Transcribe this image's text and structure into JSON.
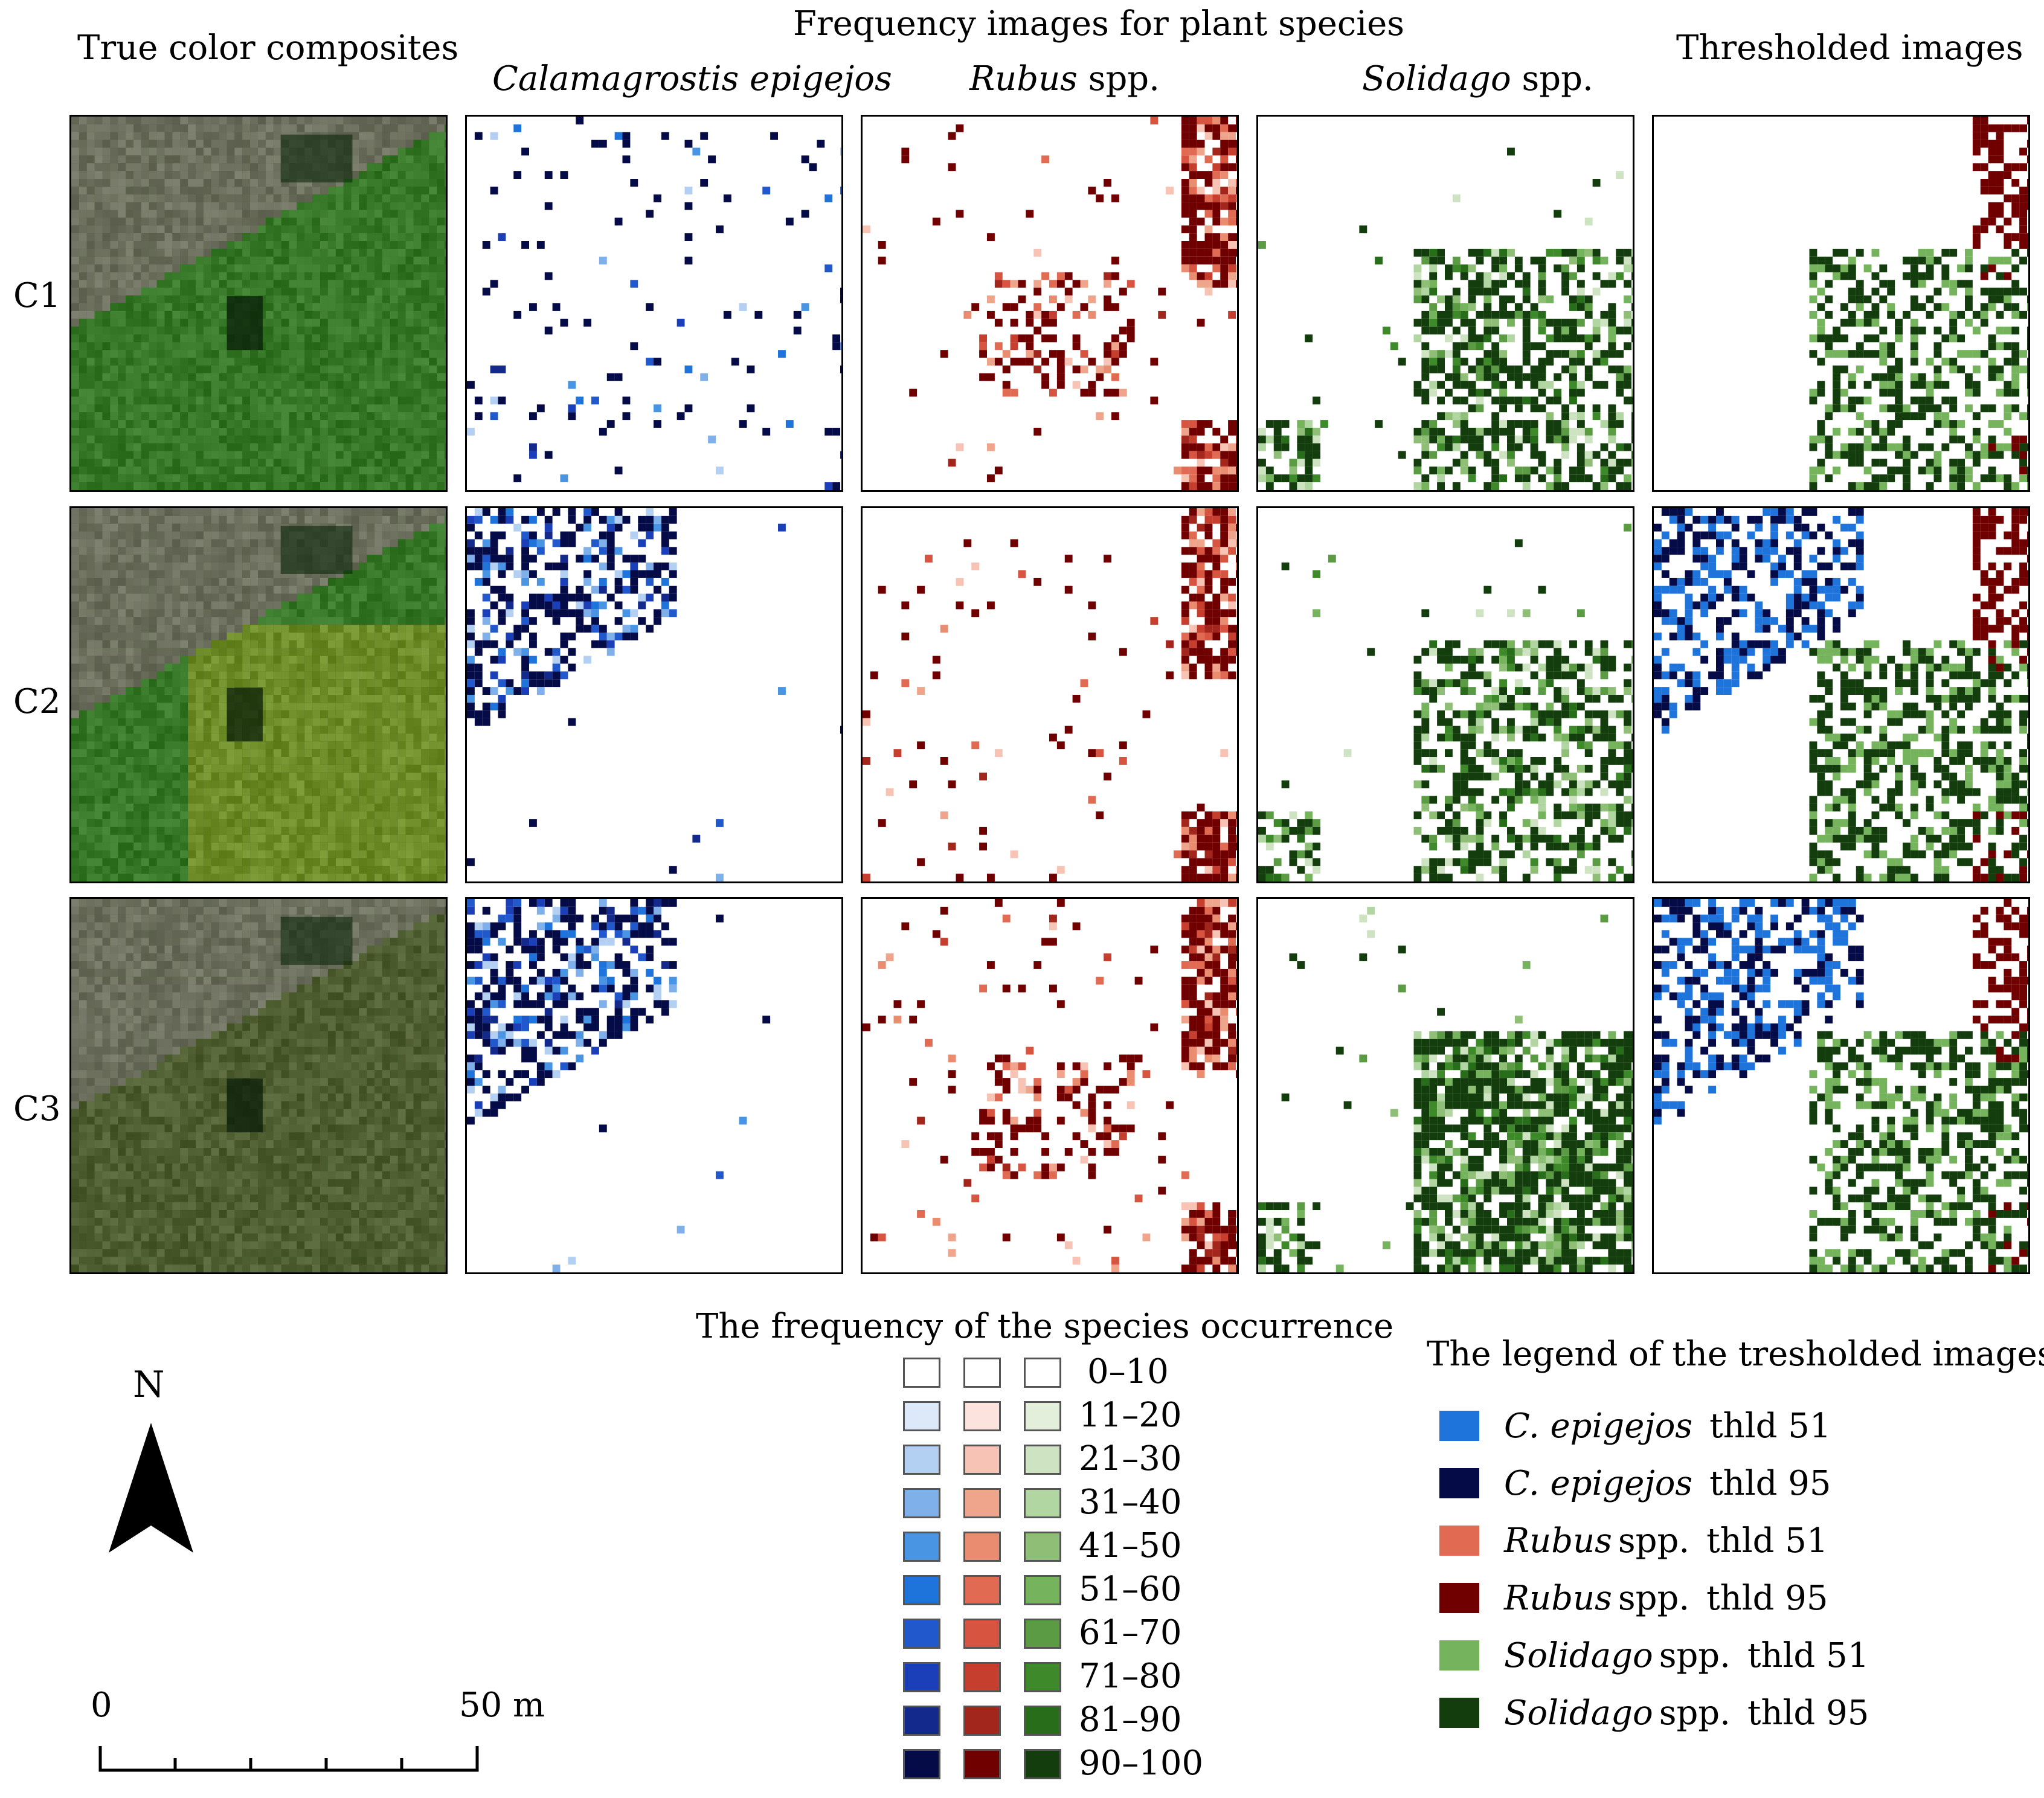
{
  "header": {
    "main_title": "Frequency images for plant species",
    "col_true_color": "True color composites",
    "col_species1_name": "Calamagrostis epigejos",
    "col_species2_name": "Rubus",
    "col_species2_suffix": "spp.",
    "col_species3_name": "Solidago",
    "col_species3_suffix": "spp.",
    "col_thresholded": "Thresholded images"
  },
  "rows": [
    {
      "label": "C1"
    },
    {
      "label": "C2"
    },
    {
      "label": "C3"
    }
  ],
  "frequency_legend": {
    "title": "The frequency of the species occurrence",
    "classes": [
      "0–10",
      "11–20",
      "21–30",
      "31–40",
      "41–50",
      "51–60",
      "61–70",
      "71–80",
      "81–90",
      "90–100"
    ],
    "blue_ramp": [
      "#ffffff",
      "#dde8f8",
      "#b3cff1",
      "#7fb0ea",
      "#4a95e3",
      "#1f74dc",
      "#2158cb",
      "#1b3fb8",
      "#132a8c",
      "#050b47"
    ],
    "red_ramp": [
      "#ffffff",
      "#fde3dd",
      "#f7c3b4",
      "#efa48c",
      "#ea8c70",
      "#e06a52",
      "#d65440",
      "#c63e2e",
      "#a3261c",
      "#700000"
    ],
    "green_ramp": [
      "#ffffff",
      "#e3eedb",
      "#cde3c2",
      "#b2d6a2",
      "#8fbf76",
      "#75b35c",
      "#5a9b44",
      "#3e8a2a",
      "#286e1a",
      "#133d0c"
    ]
  },
  "threshold_legend": {
    "title": "The legend of the tresholded images",
    "items": [
      {
        "species": "C. epigejos",
        "suffix": "",
        "thld": "thld 51",
        "color": "#1f74dc"
      },
      {
        "species": "C. epigejos",
        "suffix": "",
        "thld": "thld 95",
        "color": "#050b47"
      },
      {
        "species": "Rubus",
        "suffix": "spp.",
        "thld": "thld 51",
        "color": "#e06a52"
      },
      {
        "species": "Rubus",
        "suffix": "spp.",
        "thld": "thld 95",
        "color": "#700000"
      },
      {
        "species": "Solidago",
        "suffix": "spp.",
        "thld": "thld 51",
        "color": "#75b35c"
      },
      {
        "species": "Solidago",
        "suffix": "spp.",
        "thld": "thld 95",
        "color": "#133d0c"
      }
    ]
  },
  "north_arrow": {
    "label": "N"
  },
  "scale_bar": {
    "start_label": "0",
    "end_label": "50 m"
  }
}
